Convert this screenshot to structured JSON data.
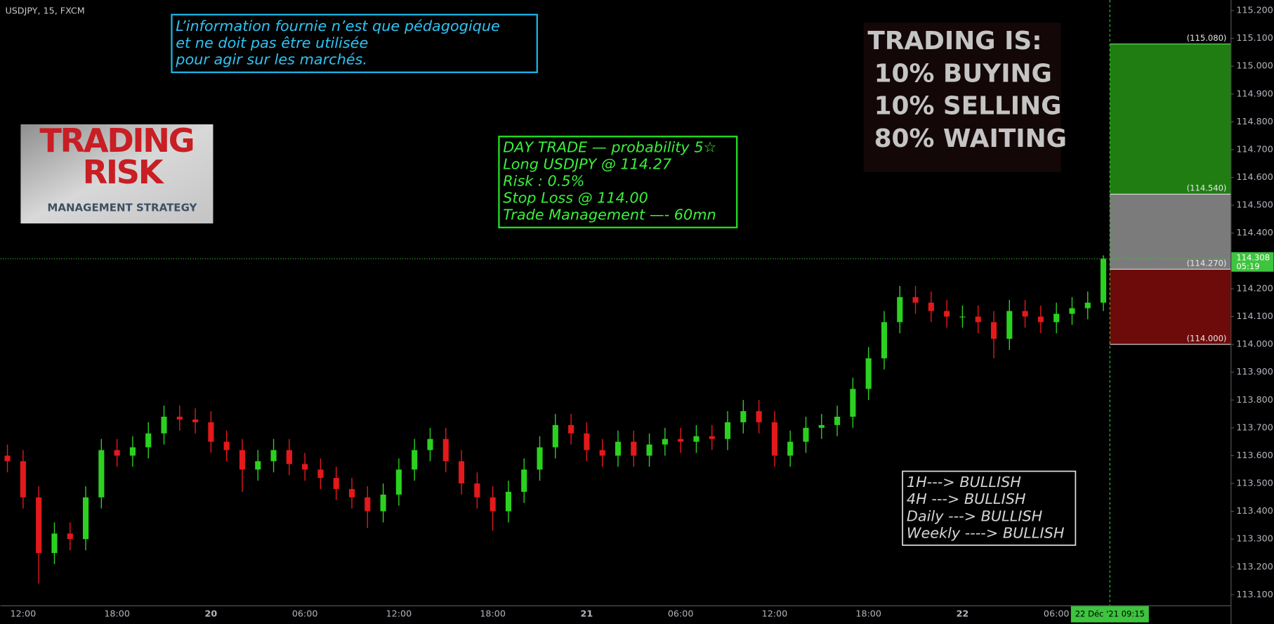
{
  "chart_data": {
    "type": "candlestick",
    "title": "USDJPY, 15, FXCM",
    "categories": [
      null,
      "12:00",
      null,
      null,
      null,
      null,
      null,
      "18:00",
      null,
      null,
      null,
      null,
      null,
      "20",
      null,
      null,
      null,
      null,
      null,
      "06:00",
      null,
      null,
      null,
      null,
      null,
      "12:00",
      null,
      null,
      null,
      null,
      null,
      "18:00",
      null,
      null,
      null,
      null,
      null,
      "21",
      null,
      null,
      null,
      null,
      null,
      "06:00",
      null,
      null,
      null,
      null,
      null,
      "12:00",
      null,
      null,
      null,
      null,
      null,
      "18:00",
      null,
      null,
      null,
      null,
      null,
      "22",
      null,
      null,
      null,
      null,
      null,
      "06:00",
      null,
      null,
      null
    ],
    "open": [
      113.6,
      113.58,
      113.45,
      113.25,
      113.32,
      113.3,
      113.45,
      113.62,
      113.6,
      113.63,
      113.68,
      113.74,
      113.73,
      113.72,
      113.65,
      113.62,
      113.55,
      113.58,
      113.62,
      113.57,
      113.55,
      113.52,
      113.48,
      113.45,
      113.4,
      113.46,
      113.55,
      113.62,
      113.66,
      113.58,
      113.5,
      113.45,
      113.4,
      113.47,
      113.55,
      113.63,
      113.71,
      113.68,
      113.62,
      113.6,
      113.65,
      113.6,
      113.64,
      113.66,
      113.65,
      113.67,
      113.66,
      113.72,
      113.76,
      113.72,
      113.6,
      113.65,
      113.7,
      113.71,
      113.74,
      113.84,
      113.95,
      114.08,
      114.17,
      114.15,
      114.12,
      114.1,
      114.1,
      114.08,
      114.02,
      114.12,
      114.1,
      114.08,
      114.11,
      114.13,
      114.15
    ],
    "high": [
      113.64,
      113.62,
      113.49,
      113.36,
      113.36,
      113.49,
      113.66,
      113.66,
      113.67,
      113.72,
      113.78,
      113.78,
      113.77,
      113.76,
      113.69,
      113.66,
      113.62,
      113.66,
      113.66,
      113.61,
      113.59,
      113.56,
      113.52,
      113.49,
      113.5,
      113.59,
      113.66,
      113.7,
      113.7,
      113.62,
      113.54,
      113.49,
      113.51,
      113.59,
      113.67,
      113.75,
      113.75,
      113.72,
      113.66,
      113.69,
      113.69,
      113.68,
      113.7,
      113.7,
      113.71,
      113.71,
      113.76,
      113.8,
      113.8,
      113.76,
      113.69,
      113.74,
      113.75,
      113.78,
      113.88,
      113.99,
      114.12,
      114.21,
      114.21,
      114.19,
      114.16,
      114.14,
      114.14,
      114.12,
      114.16,
      114.16,
      114.14,
      114.15,
      114.17,
      114.19,
      114.32
    ],
    "low": [
      113.54,
      113.41,
      113.14,
      113.21,
      113.26,
      113.26,
      113.41,
      113.56,
      113.56,
      113.59,
      113.64,
      113.69,
      113.68,
      113.61,
      113.58,
      113.47,
      113.51,
      113.54,
      113.53,
      113.51,
      113.48,
      113.44,
      113.41,
      113.34,
      113.36,
      113.42,
      113.51,
      113.58,
      113.54,
      113.46,
      113.41,
      113.33,
      113.36,
      113.43,
      113.51,
      113.59,
      113.64,
      113.58,
      113.56,
      113.56,
      113.56,
      113.56,
      113.6,
      113.61,
      113.61,
      113.62,
      113.62,
      113.68,
      113.68,
      113.56,
      113.56,
      113.61,
      113.66,
      113.67,
      113.7,
      113.8,
      113.91,
      114.04,
      114.11,
      114.08,
      114.06,
      114.06,
      114.04,
      113.95,
      113.98,
      114.06,
      114.04,
      114.04,
      114.07,
      114.09,
      114.12
    ],
    "close": [
      113.58,
      113.45,
      113.25,
      113.32,
      113.3,
      113.45,
      113.62,
      113.6,
      113.63,
      113.68,
      113.74,
      113.73,
      113.72,
      113.65,
      113.62,
      113.55,
      113.58,
      113.62,
      113.57,
      113.55,
      113.52,
      113.48,
      113.45,
      113.4,
      113.46,
      113.55,
      113.62,
      113.66,
      113.58,
      113.5,
      113.45,
      113.4,
      113.47,
      113.55,
      113.63,
      113.71,
      113.68,
      113.62,
      113.6,
      113.65,
      113.6,
      113.64,
      113.66,
      113.65,
      113.67,
      113.66,
      113.72,
      113.76,
      113.72,
      113.6,
      113.65,
      113.7,
      113.71,
      113.74,
      113.84,
      113.95,
      114.08,
      114.17,
      114.15,
      114.12,
      114.1,
      114.1,
      114.08,
      114.02,
      114.12,
      114.1,
      114.08,
      114.11,
      114.13,
      114.15,
      114.308
    ],
    "up_color": "#2bd11f",
    "down_color": "#e3191b",
    "ylim": [
      113.062,
      115.238
    ],
    "yticks": [
      {
        "value": 113.1,
        "label": "113.100"
      },
      {
        "value": 113.2,
        "label": "113.200"
      },
      {
        "value": 113.3,
        "label": "113.300"
      },
      {
        "value": 113.4,
        "label": "113.400"
      },
      {
        "value": 113.5,
        "label": "113.500"
      },
      {
        "value": 113.6,
        "label": "113.600"
      },
      {
        "value": 113.7,
        "label": "113.700"
      },
      {
        "value": 113.8,
        "label": "113.800"
      },
      {
        "value": 113.9,
        "label": "113.900"
      },
      {
        "value": 114.0,
        "label": "114.000"
      },
      {
        "value": 114.1,
        "label": "114.100"
      },
      {
        "value": 114.2,
        "label": "114.200"
      },
      {
        "value": 114.3,
        "label": "114.300"
      },
      {
        "value": 114.4,
        "label": "114.400"
      },
      {
        "value": 114.5,
        "label": "114.500"
      },
      {
        "value": 114.6,
        "label": "114.600"
      },
      {
        "value": 114.7,
        "label": "114.700"
      },
      {
        "value": 114.8,
        "label": "114.800"
      },
      {
        "value": 114.9,
        "label": "114.900"
      },
      {
        "value": 115.0,
        "label": "115.000"
      },
      {
        "value": 115.1,
        "label": "115.100"
      },
      {
        "value": 115.2,
        "label": "115.200"
      }
    ],
    "grid": false,
    "last_price": 114.308,
    "countdown": "05:19",
    "last_price_color": "#3ec43e",
    "cursor_label": "22 Déc '21   09:15",
    "levels": [
      {
        "value": 115.08,
        "label": "(115.080)"
      },
      {
        "value": 114.54,
        "label": "(114.540)"
      },
      {
        "value": 114.27,
        "label": "(114.270)"
      },
      {
        "value": 114.0,
        "label": "(114.000)"
      }
    ],
    "zone_colors": [
      "#1f7d12",
      "#7b7b7b",
      "#6d0a0a"
    ]
  },
  "annotations": {
    "disclaimer": [
      "L’information fournie n’est que pédagogique",
      "et ne doit pas être utilisée",
      "pour agir sur les marchés."
    ],
    "image": {
      "line1": "TRADING",
      "line2": "RISK",
      "line3": "MANAGEMENT STRATEGY"
    },
    "trade": [
      "DAY TRADE — probability 5☆",
      "Long USDJPY @ 114.27",
      "Risk : 0.5%",
      "Stop Loss @ 114.00",
      "Trade Management —- 60mn"
    ],
    "motto": [
      "TRADING IS:",
      "10% BUYING",
      "10% SELLING",
      "80% WAITING"
    ],
    "trend": [
      "1H---> BULLISH",
      "4H ---> BULLISH",
      "Daily ---> BULLISH",
      "Weekly ----> BULLISH"
    ]
  }
}
